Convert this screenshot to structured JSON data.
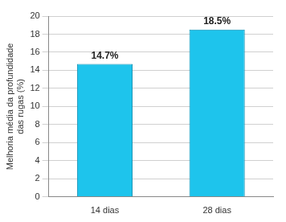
{
  "chart_data": {
    "type": "bar",
    "y_label": "Melhoria média da profundidade das rugas (%)",
    "categories": [
      "14 dias",
      "28 dias"
    ],
    "values": [
      14.7,
      18.5
    ],
    "value_labels": [
      "14.7%",
      "18.5%"
    ],
    "data_labels": true,
    "color": "#1ec4ec",
    "ylim": [
      0,
      20
    ],
    "yticks": [
      0,
      2,
      4,
      6,
      8,
      10,
      12,
      14,
      16,
      18,
      20
    ],
    "grid": true
  }
}
